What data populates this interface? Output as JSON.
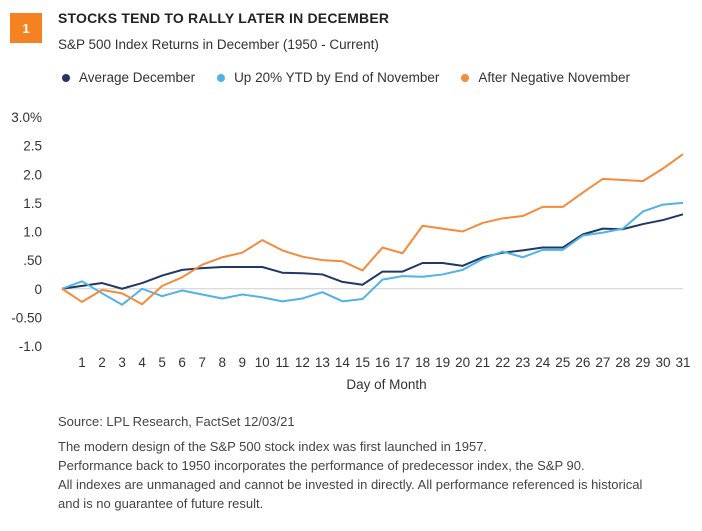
{
  "badge": "1",
  "header": {
    "title": "STOCKS TEND TO RALLY LATER IN DECEMBER",
    "subtitle": "S&P 500 Index Returns in December (1950 - Current)"
  },
  "colors": {
    "average": "#1f3864",
    "up20": "#4fb3e8",
    "negative": "#f58a3c",
    "badge": "#f58220"
  },
  "chart_data": {
    "type": "line",
    "xlabel": "Day of Month",
    "ylabel": "",
    "ylim": [
      -1.0,
      3.0
    ],
    "yticks": [
      -1.0,
      -0.5,
      0,
      0.5,
      1.0,
      1.5,
      2.0,
      2.5,
      3.0
    ],
    "ytick_labels": [
      "-1.0",
      "-0.50",
      "0",
      ".50",
      "1.0",
      "1.5",
      "2.0",
      "2.5",
      "3.0%"
    ],
    "x": [
      0,
      1,
      2,
      3,
      4,
      5,
      6,
      7,
      8,
      9,
      10,
      11,
      12,
      13,
      14,
      15,
      16,
      17,
      18,
      19,
      20,
      21,
      22,
      23,
      24,
      25,
      26,
      27,
      28,
      29,
      30,
      31
    ],
    "xtick_labels": [
      "1",
      "2",
      "3",
      "4",
      "5",
      "6",
      "7",
      "8",
      "9",
      "10",
      "11",
      "12",
      "13",
      "14",
      "15",
      "16",
      "17",
      "18",
      "19",
      "20",
      "21",
      "22",
      "23",
      "24",
      "25",
      "26",
      "27",
      "28",
      "29",
      "30",
      "31"
    ],
    "grid": false,
    "legend_position": "top",
    "series": [
      {
        "name": "Average December",
        "color_key": "average",
        "values": [
          0,
          0.05,
          0.1,
          0.0,
          0.1,
          0.23,
          0.33,
          0.36,
          0.38,
          0.38,
          0.38,
          0.28,
          0.27,
          0.25,
          0.12,
          0.07,
          0.3,
          0.3,
          0.45,
          0.45,
          0.4,
          0.55,
          0.63,
          0.67,
          0.72,
          0.72,
          0.95,
          1.05,
          1.04,
          1.13,
          1.2,
          1.3
        ]
      },
      {
        "name": "Up 20% YTD by End of November",
        "color_key": "up20",
        "values": [
          0,
          0.13,
          -0.08,
          -0.28,
          0.0,
          -0.13,
          -0.03,
          -0.1,
          -0.17,
          -0.1,
          -0.15,
          -0.22,
          -0.17,
          -0.06,
          -0.22,
          -0.18,
          0.16,
          0.22,
          0.21,
          0.25,
          0.33,
          0.52,
          0.65,
          0.55,
          0.68,
          0.68,
          0.93,
          0.98,
          1.05,
          1.35,
          1.47,
          1.5
        ]
      },
      {
        "name": "After Negative November",
        "color_key": "negative",
        "values": [
          0,
          -0.23,
          -0.02,
          -0.08,
          -0.27,
          0.05,
          0.2,
          0.42,
          0.55,
          0.63,
          0.85,
          0.67,
          0.56,
          0.5,
          0.48,
          0.32,
          0.72,
          0.62,
          1.1,
          1.05,
          1.0,
          1.15,
          1.23,
          1.27,
          1.43,
          1.43,
          1.68,
          1.92,
          1.9,
          1.88,
          2.1,
          2.35
        ]
      }
    ]
  },
  "footer": {
    "source": "Source: LPL Research, FactSet  12/03/21",
    "notes": [
      "The modern design of the S&P 500 stock index was first launched in 1957.",
      "Performance back to 1950 incorporates the performance of predecessor index, the S&P 90.",
      "All indexes are unmanaged and cannot be invested in directly. All performance referenced is historical",
      "and is no guarantee of future result."
    ]
  }
}
